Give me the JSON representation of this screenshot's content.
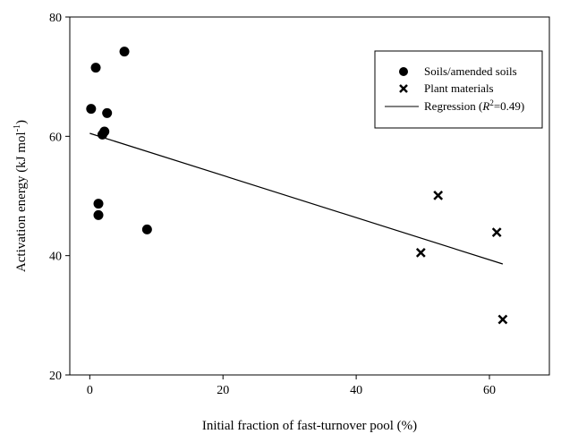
{
  "chart_data": {
    "type": "scatter",
    "xlabel": "Initial fraction of fast-turnover pool (%)",
    "ylabel": "Activation energy (kJ mol",
    "ylabel_sup": "-1",
    "ylabel_end": ")",
    "xlim": [
      -3,
      69
    ],
    "ylim": [
      20,
      80
    ],
    "x_ticks": [
      0,
      20,
      40,
      60
    ],
    "y_ticks": [
      20,
      40,
      60,
      80
    ],
    "grid": false,
    "legend_position": "top-right",
    "series": [
      {
        "name": "Soils/amended soils",
        "marker": "circle",
        "points": [
          {
            "x": 0.2,
            "y": 64.6
          },
          {
            "x": 0.9,
            "y": 71.5
          },
          {
            "x": 1.3,
            "y": 48.7
          },
          {
            "x": 1.3,
            "y": 46.8
          },
          {
            "x": 1.9,
            "y": 60.3
          },
          {
            "x": 2.2,
            "y": 60.8
          },
          {
            "x": 2.6,
            "y": 63.9
          },
          {
            "x": 5.2,
            "y": 74.2
          },
          {
            "x": 8.6,
            "y": 44.4
          }
        ]
      },
      {
        "name": "Plant materials",
        "marker": "x",
        "points": [
          {
            "x": 49.7,
            "y": 40.5
          },
          {
            "x": 52.3,
            "y": 50.1
          },
          {
            "x": 61.1,
            "y": 43.9
          },
          {
            "x": 62.0,
            "y": 29.3
          }
        ]
      }
    ],
    "regression": {
      "label": "Regression (",
      "label_r": "R",
      "label_sup": "2",
      "label_end": "=0.49)",
      "x": [
        0,
        62
      ],
      "y": [
        60.5,
        38.6
      ]
    }
  }
}
